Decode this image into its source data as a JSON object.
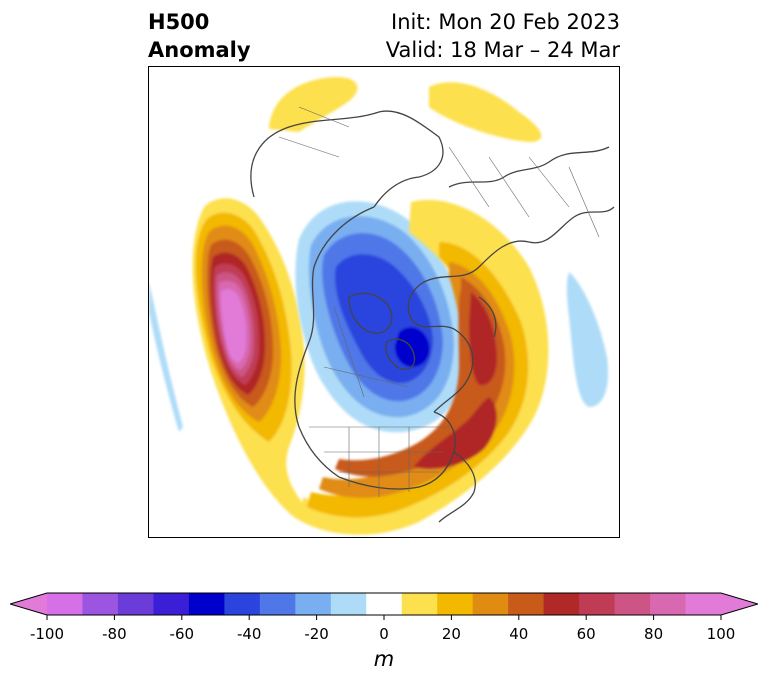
{
  "header": {
    "left_line1": "H500",
    "left_line2": "Anomaly",
    "right_line1": "Init: Mon 20 Feb 2023",
    "right_line2": "Valid: 18 Mar – 24 Mar"
  },
  "map": {
    "projection": "polar stereographic (north)",
    "field": "500 hPa geopotential height anomaly",
    "features": [
      {
        "name": "ridge-northeast-pacific",
        "sign": "positive",
        "peak_value": 100
      },
      {
        "name": "trough-canada-arctic",
        "sign": "negative",
        "peak_value": -60
      },
      {
        "name": "ridge-eastern-us-atlantic",
        "sign": "positive",
        "peak_value": 60
      },
      {
        "name": "ridge-northern-europe",
        "sign": "positive",
        "peak_value": 60
      },
      {
        "name": "ridge-siberia",
        "sign": "positive",
        "peak_value": 10
      },
      {
        "name": "weak-trough-central-pacific",
        "sign": "negative",
        "peak_value": -10
      }
    ]
  },
  "colorbar": {
    "unit": "m",
    "extend": "both",
    "levels": [
      -100,
      -90,
      -80,
      -70,
      -60,
      -50,
      -40,
      -30,
      -20,
      -10,
      10,
      20,
      30,
      40,
      50,
      60,
      70,
      80,
      90,
      100
    ],
    "colors": [
      "#d670e6",
      "#9b55e0",
      "#6b3cd8",
      "#3b1fd6",
      "#0000cc",
      "#2a44dd",
      "#4f77e8",
      "#79aef0",
      "#aedcf8",
      "#ffffff",
      "#fde04e",
      "#f3b800",
      "#e08c12",
      "#c85a1a",
      "#b02828",
      "#c03c55",
      "#cc5585",
      "#d868b0",
      "#e27ad8"
    ],
    "under_color": "#e27ad8",
    "over_color": "#e27ad8",
    "tick_labels": [
      "-100",
      "-80",
      "-60",
      "-40",
      "-20",
      "0",
      "20",
      "40",
      "60",
      "80",
      "100"
    ],
    "tick_values": [
      -100,
      -80,
      -60,
      -40,
      -20,
      0,
      20,
      40,
      60,
      80,
      100
    ]
  }
}
